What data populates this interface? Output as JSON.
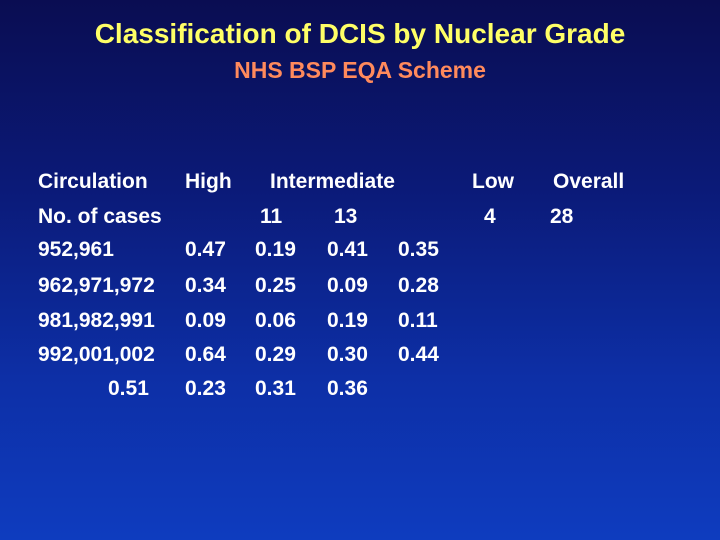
{
  "slide": {
    "title": "Classification of DCIS by Nuclear Grade",
    "subtitle": "NHS BSP EQA Scheme",
    "colors": {
      "background_top": "#0a0d52",
      "background_bottom": "#0e3cbf",
      "title": "#ffff66",
      "subtitle": "#ff8a5c",
      "body_text": "#ffffff"
    }
  },
  "table": {
    "headers": {
      "circulation": "Circulation",
      "high": "High",
      "intermediate": "Intermediate",
      "low": "Low",
      "overall": "Overall"
    },
    "cases": {
      "label": "No. of cases",
      "values": [
        "11",
        "13",
        "4",
        "28"
      ]
    },
    "rows": [
      {
        "circulation": "952,961",
        "values": [
          "0.47",
          "0.19",
          "0.41",
          "0.35"
        ]
      },
      {
        "circulation": "962,971,972",
        "values": [
          "0.34",
          "0.25",
          "0.09",
          "0.28"
        ]
      },
      {
        "circulation": "981,982,991",
        "values": [
          "0.09",
          "0.06",
          "0.19",
          "0.11"
        ]
      },
      {
        "circulation": "992,001,002",
        "values": [
          "0.64",
          "0.29",
          "0.30",
          "0.44"
        ]
      }
    ],
    "last_row": {
      "values": [
        "0.51",
        "0.23",
        "0.31",
        "0.36"
      ]
    }
  }
}
